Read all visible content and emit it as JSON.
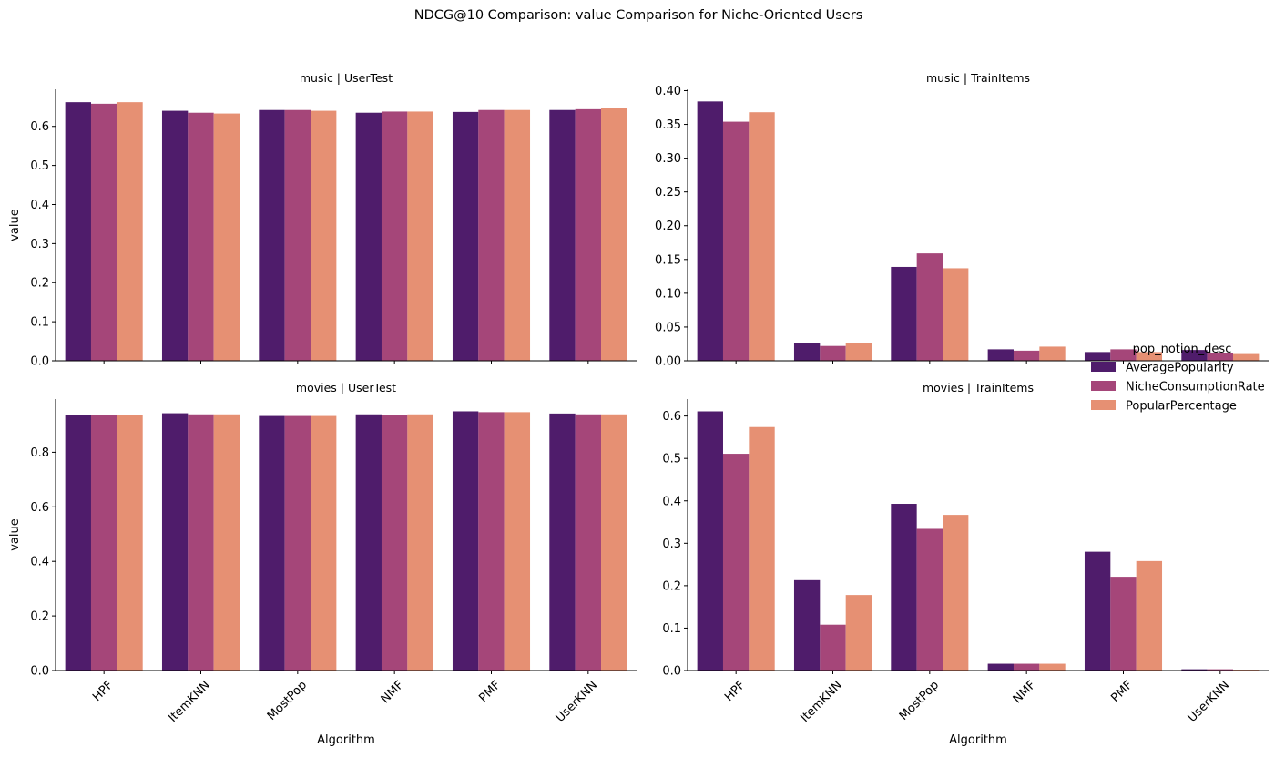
{
  "chart_data": {
    "type": "bar",
    "title": "NDCG@10 Comparison: value Comparison for Niche-Oriented Users",
    "x_label": "Algorithm",
    "y_label": "value",
    "categories": [
      "HPF",
      "ItemKNN",
      "MostPop",
      "NMF",
      "PMF",
      "UserKNN"
    ],
    "legend": {
      "title": "pop_notion_desc",
      "placement": "right",
      "entries": [
        "AveragePopularity",
        "NicheConsumptionRate",
        "PopularPercentage"
      ]
    },
    "colors": {
      "AveragePopularity": "#4f1c6b",
      "NicheConsumptionRate": "#a54679",
      "PopularPercentage": "#e69073"
    },
    "panels": [
      {
        "title": "music | UserTest",
        "ylim": [
          0,
          0.695
        ],
        "yticks": [
          "0.0",
          "0.1",
          "0.2",
          "0.3",
          "0.4",
          "0.5",
          "0.6"
        ],
        "series": [
          {
            "name": "AveragePopularity",
            "values": [
              0.662,
              0.64,
              0.642,
              0.635,
              0.637,
              0.642
            ]
          },
          {
            "name": "NicheConsumptionRate",
            "values": [
              0.658,
              0.635,
              0.642,
              0.638,
              0.642,
              0.644
            ]
          },
          {
            "name": "PopularPercentage",
            "values": [
              0.662,
              0.633,
              0.64,
              0.638,
              0.642,
              0.646
            ]
          }
        ]
      },
      {
        "title": "music | TrainItems",
        "ylim": [
          0,
          0.402
        ],
        "yticks": [
          "0.00",
          "0.05",
          "0.10",
          "0.15",
          "0.20",
          "0.25",
          "0.30",
          "0.35",
          "0.40"
        ],
        "series": [
          {
            "name": "AveragePopularity",
            "values": [
              0.384,
              0.026,
              0.139,
              0.017,
              0.013,
              0.016
            ]
          },
          {
            "name": "NicheConsumptionRate",
            "values": [
              0.354,
              0.022,
              0.159,
              0.015,
              0.017,
              0.012
            ]
          },
          {
            "name": "PopularPercentage",
            "values": [
              0.368,
              0.026,
              0.137,
              0.021,
              0.013,
              0.01
            ]
          }
        ]
      },
      {
        "title": "movies | UserTest",
        "ylim": [
          0,
          0.995
        ],
        "yticks": [
          "0.0",
          "0.2",
          "0.4",
          "0.6",
          "0.8"
        ],
        "series": [
          {
            "name": "AveragePopularity",
            "values": [
              0.936,
              0.943,
              0.933,
              0.939,
              0.95,
              0.942
            ]
          },
          {
            "name": "NicheConsumptionRate",
            "values": [
              0.936,
              0.939,
              0.933,
              0.936,
              0.947,
              0.939
            ]
          },
          {
            "name": "PopularPercentage",
            "values": [
              0.936,
              0.939,
              0.933,
              0.939,
              0.947,
              0.939
            ]
          }
        ]
      },
      {
        "title": "movies | TrainItems",
        "ylim": [
          0,
          0.64
        ],
        "yticks": [
          "0.0",
          "0.1",
          "0.2",
          "0.3",
          "0.4",
          "0.5",
          "0.6"
        ],
        "series": [
          {
            "name": "AveragePopularity",
            "values": [
              0.611,
              0.213,
              0.393,
              0.016,
              0.28,
              0.003
            ]
          },
          {
            "name": "NicheConsumptionRate",
            "values": [
              0.511,
              0.108,
              0.334,
              0.016,
              0.221,
              0.003
            ]
          },
          {
            "name": "PopularPercentage",
            "values": [
              0.574,
              0.178,
              0.367,
              0.016,
              0.258,
              0.002
            ]
          }
        ]
      }
    ]
  }
}
